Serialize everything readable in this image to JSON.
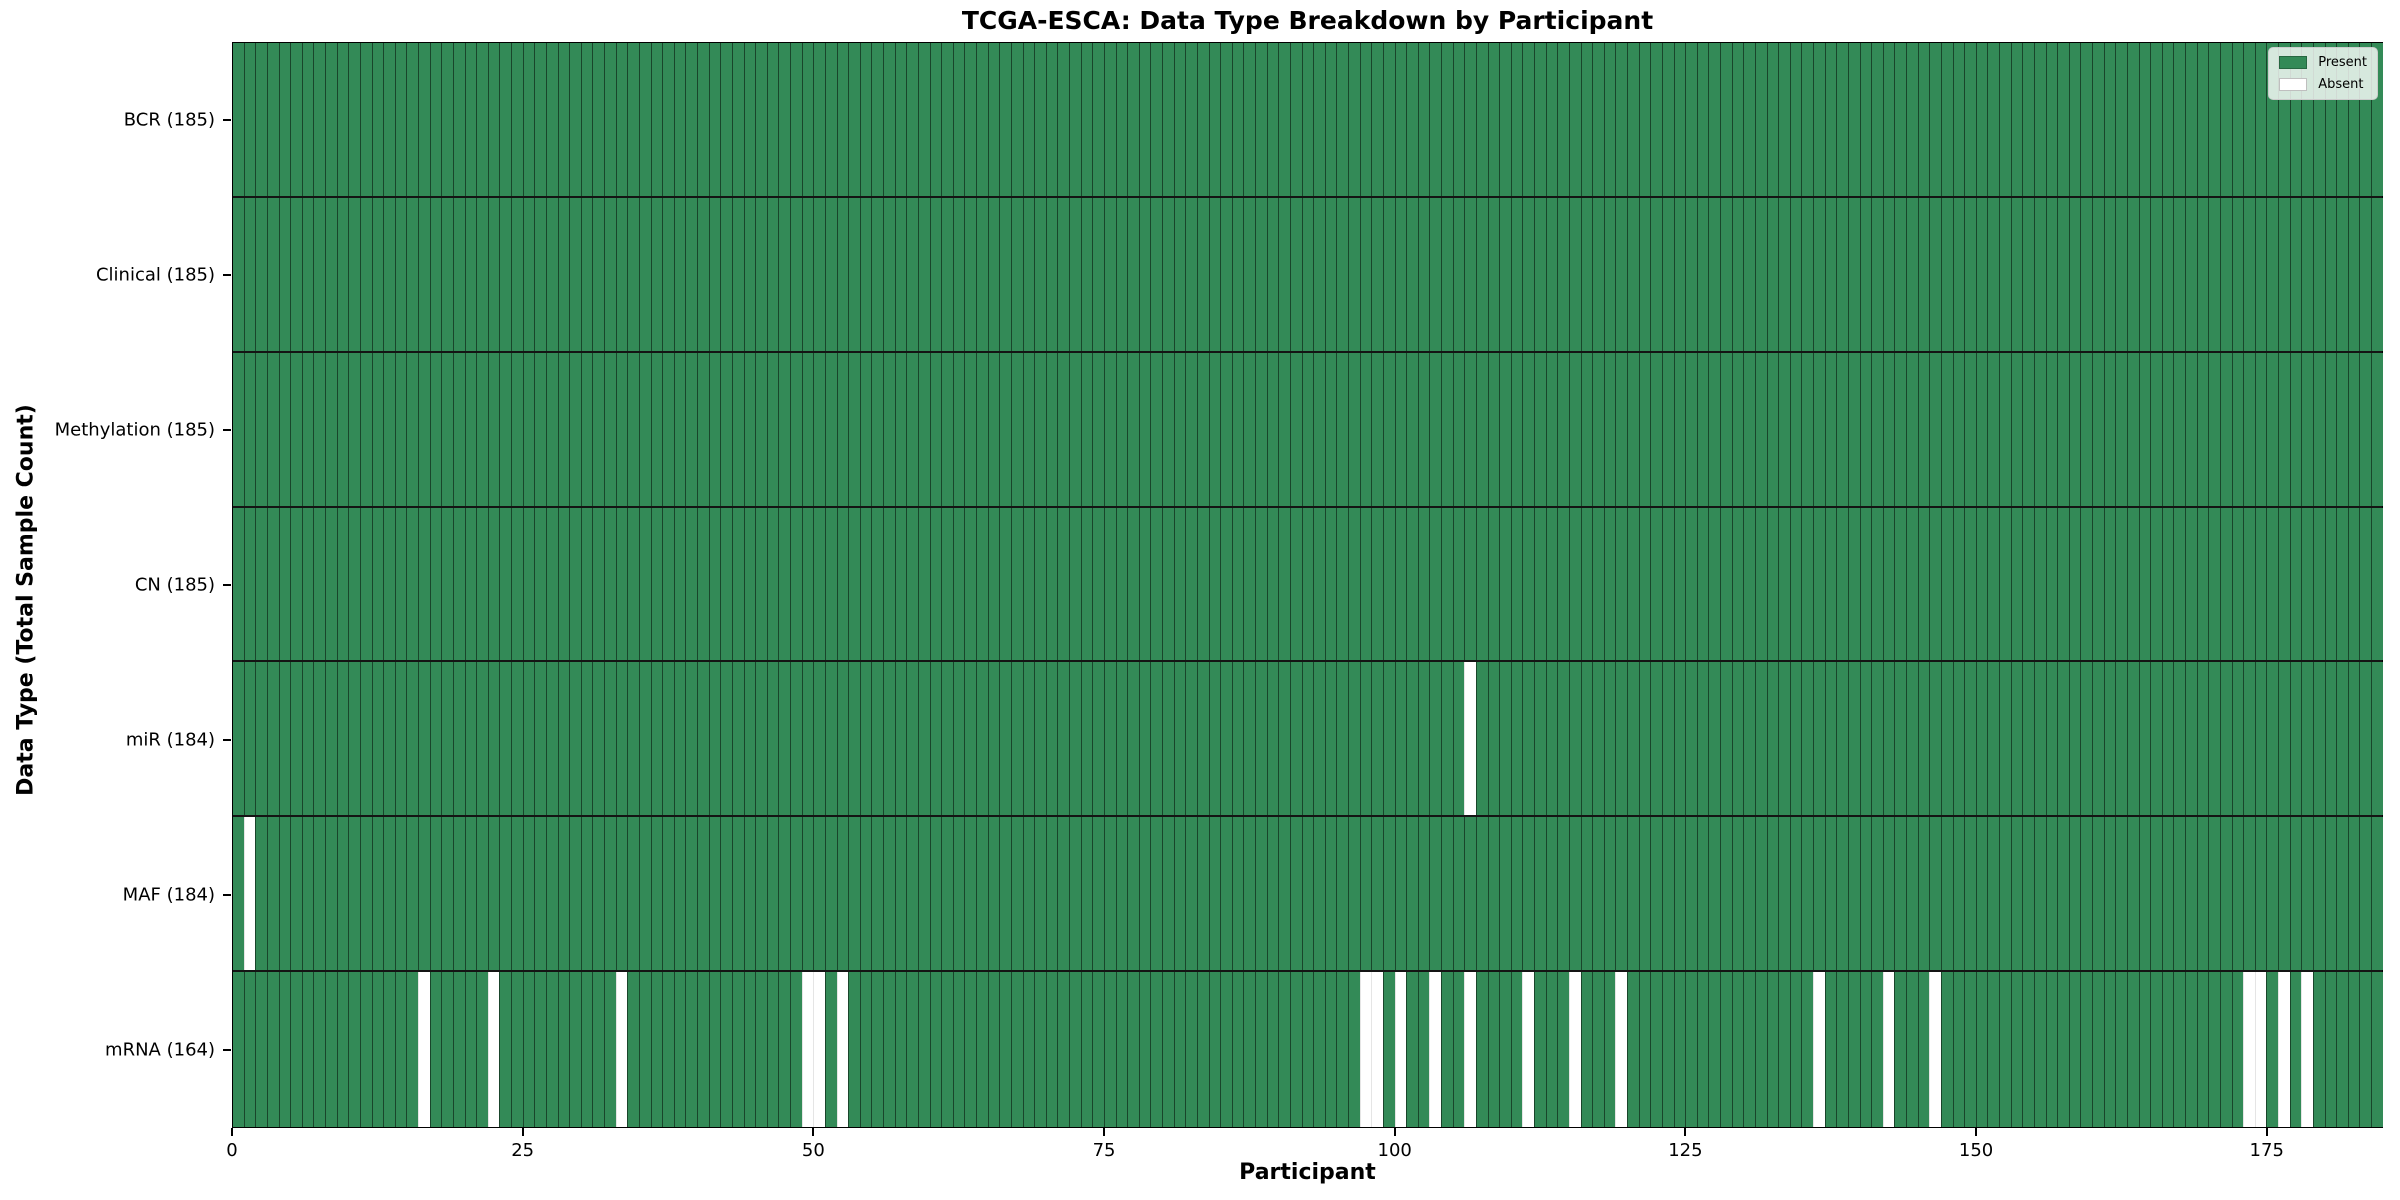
{
  "colors": {
    "present": "#338a57",
    "absent": "#ffffff",
    "grid_line": "rgba(0,0,0,0.5)",
    "row_separator": "#141414",
    "axis": "#000000",
    "legend_bg": "rgba(255,255,255,0.8)"
  },
  "chart_data": {
    "type": "heatmap",
    "title": "TCGA-ESCA: Data Type Breakdown by Participant",
    "xlabel": "Participant",
    "ylabel": "Data Type (Total Sample Count)",
    "n_participants": 185,
    "x_range": [
      0,
      185
    ],
    "x_ticks": [
      0,
      25,
      50,
      75,
      100,
      125,
      150,
      175
    ],
    "grid": true,
    "legend_position": "upper right",
    "legend": [
      {
        "label": "Present",
        "color": "#338a57"
      },
      {
        "label": "Absent",
        "color": "#ffffff"
      }
    ],
    "rows": [
      {
        "label": "BCR (185)",
        "data_type": "BCR",
        "total_samples": 185,
        "absent_participants": []
      },
      {
        "label": "Clinical (185)",
        "data_type": "Clinical",
        "total_samples": 185,
        "absent_participants": []
      },
      {
        "label": "Methylation (185)",
        "data_type": "Methylation",
        "total_samples": 185,
        "absent_participants": []
      },
      {
        "label": "CN (185)",
        "data_type": "CN",
        "total_samples": 185,
        "absent_participants": []
      },
      {
        "label": "miR (184)",
        "data_type": "miR",
        "total_samples": 184,
        "absent_participants": [
          106
        ]
      },
      {
        "label": "MAF (184)",
        "data_type": "MAF",
        "total_samples": 184,
        "absent_participants": [
          1
        ]
      },
      {
        "label": "mRNA (164)",
        "data_type": "mRNA",
        "total_samples": 164,
        "absent_participants": [
          16,
          22,
          33,
          49,
          50,
          52,
          97,
          98,
          100,
          103,
          106,
          111,
          115,
          119,
          136,
          142,
          146,
          173,
          174,
          176,
          178
        ]
      }
    ]
  }
}
